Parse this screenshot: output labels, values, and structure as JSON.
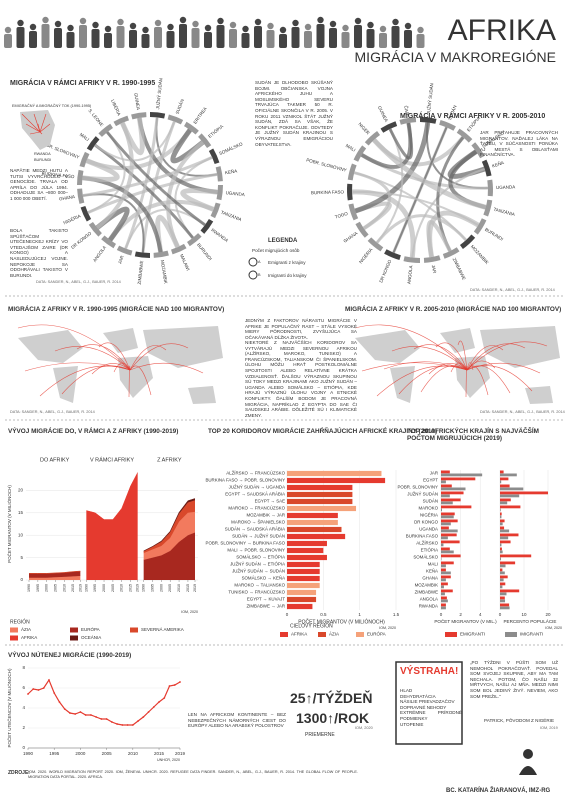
{
  "header": {
    "title": "AFRIKA",
    "subtitle": "MIGRÁCIA V MAKROREGIÓNE"
  },
  "chords": [
    {
      "title": "MIGRÁCIA V RÁMCI AFRIKY V R. 1990-1995",
      "labels": [
        "JUŽNÝ SUDÁN",
        "SUDÁN",
        "ERITREA",
        "ETIÓPIA",
        "SOMÁLSKO",
        "KEŇA",
        "UGANDA",
        "TANZÁNIA",
        "RWANDA",
        "BURUNDI",
        "MALAWI",
        "MOZAMBIK",
        "ZIMBABWE",
        "JAR",
        "ANGOLA",
        "DR KONGO",
        "NIGÉRIA",
        "GHANA",
        "BURKINA FASO",
        "POBR. SLONOVINY",
        "MALI",
        "S. LEONE",
        "LIBÉRIA",
        "GUINEA"
      ],
      "source": "DATA: SANDER, N., ABEL, G.J., BAUER, R. 2014"
    },
    {
      "title": "MIGRÁCIA V RÁMCI AFRIKY V R. 2005-2010",
      "labels": [
        "JUŽNÝ SUDÁN",
        "SUDÁN",
        "ETIÓPIA",
        "SOMÁLSKO",
        "KEŇA",
        "UGANDA",
        "TANZÁNIA",
        "BURUNDI",
        "MOZAMBIK",
        "ZIMBABWE",
        "JAR",
        "ANGOLA",
        "DR KONGO",
        "NIGÉRIA",
        "GHANA",
        "TOGO",
        "BURKINA FASO",
        "POBR. SLONOVINY",
        "MALI",
        "NIGER",
        "GUINEA",
        "ČAD"
      ],
      "source": "DATA: SANDER, N., ABEL, G.J., BAUER, R. 2014"
    }
  ],
  "chord_notes": {
    "inset_title": "EMIGRAČNÝ A IMIGRAČNÝ TOK (1990-1995)",
    "inset_labels": [
      "RWANDA",
      "BURUNDI"
    ],
    "rwanda": "NAPÄTIE MEDZI HUTU A TUTSI VYVRCHOLILO V GENOCÍDE. TRVALA OD APRÍLA DO JÚLA 1994. ODHADUJE SA ~800 000–1 000 000 OBETÍ.",
    "zaire": "BOLA TAKISTO SPÚŠŤAČOM UTEČENECKEJ KRÍZY VO VTEDAJŠOM ZAIRE (DR KONGO) A NASLEDUJÚCEJ VOJNE. NEPOKOJE SA ODOHRÁVALI TAKISTO V BURUNDI.",
    "sudan": "SUDÁN JE DLHODOBO SKÚŠANÝ BOJMI. OBČIANSKA VOJNA AFRICKÉHO JUHU A MOSLIMSKÉHO SEVERU TRVAJÚCA TAKMER 50 R. OFICIÁLNE SKONČILA V R. 2005. V ROKU 2011 VZNIKOL ŠTÁT JUŽNÝ SUDÁN, ZDÁ SA VŠAK, ŽE KONFLIKT POKRAČUJE. ODVTEDY JE JUŽNÝ SUDÁN KRAJINOU S VÝRAZNOU EMIGRÁCIOU OBYVATEĽSTVA.",
    "jar": "JAR PRIŤAHUJE PRACOVNÝCH MIGRANTOV. NAĎALEJ LÁKA NA ŤAŽBU, V SÚČASNOSTI PONÚKA AJ MESTÁ S OBLASŤAMI FINANČNÍCTVA."
  },
  "legend": {
    "title": "LEGENDA",
    "subtitle": "Počet migrujúcich osôb",
    "a": "A",
    "b": "B",
    "a_text": "Emigranti z krajiny",
    "b_text": "Imigranti do krajiny"
  },
  "maps": [
    {
      "title": "MIGRÁCIA Z AFRIKY V R. 1990-1995 (MIGRÁCIE NAD 100 MIGRANTOV)",
      "source": "DATA: SANDER, N., ABEL, G.J., BAUER, R. 2014"
    },
    {
      "title": "MIGRÁCIA Z AFRIKY V R. 2005-2010 (MIGRÁCIE NAD 100 MIGRANTOV)",
      "source": "DATA: SANDER, N., ABEL, G.J., BAUER, R. 2014"
    }
  ],
  "middle_text": {
    "p1": "JEDNÝM Z FAKTOROV NÁRASTU MIGRÁCIE V AFRIKE JE POPULAČNÝ RAST – STÁLE VYSOKÉ MIERY PÔRODNOSTI, ZVYŠUJÚCA SA OČAKÁVANÁ DĹŽKA ŽIVOTA.",
    "p2": "NIEKTORÉ Z NAJVÄČŠÍCH KORIDOROV SA VYTVÁRAJÚ MEDZI SEVERNOU AFRIKOU (ALŽÍRSKO, MAROKO, TUNISKO) A FRANCÚZSKOM, TALIANSKOM ČI ŠPANIELSKOM. ÚLOHU MÔŽU HRAŤ POSTKOLONIÁLNE SPOJITOSTI ALEBO RELATÍVNE KRÁTKA VZDIALENOSŤ. ĎALŠOU VÝRAZNOU SKUPINOU SÚ TOKY MEDZI KRAJINAMI AKO JUŽNÝ SUDÁN – UGANDA ALEBO SOMÁLSKO – ETIÓPIA, KDE HRAJÚ VÝRAZNÚ ÚLOHU VOJNY A ETNICKÉ KONFLIKTY. ĎALŠÍM BODOM JE PRACOVNÁ MIGRÁCIA, NAPRÍKLAD Z EGYPTA DO SAE ČI SAUDSKEJ ARÁBIE. DÔLEŽITÉ SÚ I KLIMATICKÉ ZMENY."
  },
  "chart_data": [
    {
      "type": "area",
      "title": "VÝVOJ MIGRÁCIE DO, V RÁMCI A Z AFRIKY (1990-2019)",
      "y_label": "POČET MIGRANTOV (V MILIÓNOCH)",
      "x": [
        1990,
        1995,
        2000,
        2005,
        2010,
        2015,
        2019
      ],
      "xticks": [
        1990,
        1995,
        2000,
        2005,
        2010,
        2015,
        2019
      ],
      "ylim": [
        0,
        25
      ],
      "yticks": [
        0,
        5,
        10,
        15,
        20
      ],
      "legend_title": "REGIÓN",
      "source": "IOM, 2020",
      "panels": [
        {
          "title": "DO AFRIKY",
          "series": [
            {
              "name": "ÁZIA",
              "color": "#f27a5e",
              "values": [
                0.5,
                0.5,
                0.5,
                0.6,
                0.7,
                0.8,
                0.9
              ]
            },
            {
              "name": "EURÓPA",
              "color": "#a8281f",
              "values": [
                0.9,
                0.9,
                0.9,
                0.9,
                0.9,
                1.0,
                1.0
              ]
            },
            {
              "name": "SEVERNÁ AMERIKA",
              "color": "#d9482b",
              "values": [
                0.1,
                0.1,
                0.1,
                0.1,
                0.1,
                0.1,
                0.1
              ]
            }
          ]
        },
        {
          "title": "V RÁMCI AFRIKY",
          "series": [
            {
              "name": "AFRIKA",
              "color": "#e53a2f",
              "values": [
                15.5,
                15,
                13.5,
                13.5,
                16,
                21,
                24
              ]
            }
          ]
        },
        {
          "title": "Z AFRIKY",
          "series": [
            {
              "name": "EURÓPA",
              "color": "#a8281f",
              "values": [
                4.5,
                5,
                5.5,
                6.5,
                8.5,
                10,
                10.6
              ]
            },
            {
              "name": "ÁZIA",
              "color": "#f27a5e",
              "values": [
                1.5,
                1.8,
                2.1,
                2.9,
                4.5,
                5,
                4.6
              ]
            },
            {
              "name": "SEVERNÁ AMERIKA",
              "color": "#d9482b",
              "values": [
                0.4,
                0.6,
                0.9,
                1.3,
                1.8,
                2.3,
                2.6
              ]
            },
            {
              "name": "OCEÁNIA",
              "color": "#6b1a14",
              "values": [
                0.1,
                0.1,
                0.2,
                0.2,
                0.3,
                0.4,
                0.4
              ]
            }
          ]
        }
      ]
    },
    {
      "type": "bar",
      "orientation": "horizontal",
      "title": "TOP 20 KORIDOROV MIGRÁCIE ZAHŔŇAJÚCICH AFRICKÉ KRAJINY (2019)",
      "x_label": "POČET MIGRANTOV (V MILIÓNOCH)",
      "categories": [
        "ALŽÍRSKO → FRANCÚZSKO",
        "BURKINA FASO → POBR. SLONOVINY",
        "JUŽNÝ SUDÁN → UGANDA",
        "EGYPT → SAUDSKÁ ARÁBIA",
        "EGYPT → SAE",
        "MAROKO → FRANCÚZSKO",
        "MOZAMBIK → JAR",
        "MAROKO → ŠPANIELSKO",
        "SUDÁN → SAUDSKÁ ARÁBIA",
        "SUDÁN → JUŽNÝ SUDÁN",
        "POBR. SLONOVINY → BURKINA FASO",
        "MALI → POBR. SLONOVINY",
        "SOMÁLSKO → ETIÓPIA",
        "JUŽNÝ SUDÁN → ETIÓPIA",
        "JUŽNÝ SUDÁN → SUDÁN",
        "SOMÁLSKO → KEŇA",
        "MAROKO → TALIANSKO",
        "TUNISKO → FRANCÚZSKO",
        "EGYPT → KUVAJT",
        "ZIMBABWE → JAR"
      ],
      "values": [
        1.3,
        1.35,
        0.9,
        0.9,
        0.9,
        0.95,
        0.7,
        0.7,
        0.75,
        0.8,
        0.55,
        0.5,
        0.55,
        0.45,
        0.45,
        0.45,
        0.45,
        0.4,
        0.4,
        0.35
      ],
      "colors": [
        "#f5a27a",
        "#e53a2f",
        "#e53a2f",
        "#d9482b",
        "#d9482b",
        "#f5a27a",
        "#e53a2f",
        "#f5a27a",
        "#d9482b",
        "#e53a2f",
        "#e53a2f",
        "#e53a2f",
        "#e53a2f",
        "#e53a2f",
        "#e53a2f",
        "#e53a2f",
        "#f5a27a",
        "#f5a27a",
        "#d9482b",
        "#e53a2f"
      ],
      "xlim": [
        0,
        1.5
      ],
      "xticks": [
        0,
        0.5,
        1,
        1.5
      ],
      "legend_title": "CIEĽOVÝ REGIÓN",
      "legend": [
        {
          "name": "AFRIKA",
          "color": "#e53a2f"
        },
        {
          "name": "ÁZIA",
          "color": "#d9482b"
        },
        {
          "name": "EURÓPA",
          "color": "#f5a27a"
        }
      ],
      "source": "IOM, 2020"
    },
    {
      "type": "bar",
      "orientation": "horizontal",
      "title": "TOP 20 AFRICKÝCH KRAJÍN S NAJVÄČŠÍM POČTOM MIGRUJÚCICH (2019)",
      "categories": [
        "JAR",
        "EGYPT",
        "POBR. SLONOVINY",
        "JUŽNÝ SUDÁN",
        "SUDÁN",
        "MAROKO",
        "NIGÉRIA",
        "DR KONGO",
        "UGANDA",
        "BURKINA FASO",
        "ALŽÍRSKO",
        "ETIÓPIA",
        "SOMÁLSKO",
        "MALI",
        "KEŇA",
        "GHANA",
        "MOZAMBIK",
        "ZIMBABWE",
        "ANGOLA",
        "RWANDA"
      ],
      "source": "IOM, 2020",
      "panels": [
        {
          "x_label": "POČET MIGRANTOV (V MIL.)",
          "xlim": [
            0,
            5
          ],
          "xticks": [
            0,
            2,
            4
          ],
          "series": [
            {
              "name": "EMIGRANTI",
              "color": "#e53a2f",
              "values": [
                0.9,
                3.5,
                1.1,
                2.3,
                2.0,
                3.1,
                1.4,
                1.7,
                0.8,
                1.6,
                1.9,
                0.9,
                2.0,
                1.3,
                0.5,
                1.0,
                0.7,
                1.2,
                0.6,
                0.5
              ]
            },
            {
              "name": "IMIGRANTI",
              "color": "#8c8c8c",
              "values": [
                4.2,
                0.5,
                2.5,
                0.9,
                1.2,
                0.1,
                1.3,
                1.0,
                1.7,
                0.7,
                0.25,
                1.3,
                0.05,
                0.5,
                1.0,
                0.5,
                0.3,
                0.4,
                0.7,
                0.5
              ]
            }
          ]
        },
        {
          "x_label": "PERCENTO POPULÁCIE",
          "xlim": [
            0,
            25
          ],
          "xticks": [
            0,
            10,
            20
          ],
          "series": [
            {
              "color": "#e53a2f",
              "values": [
                1.5,
                3.5,
                4,
                20,
                4.5,
                8.5,
                0.7,
                1.9,
                1.7,
                7.7,
                4.4,
                0.8,
                13,
                6.3,
                1,
                3.2,
                2.2,
                8,
                2,
                3.8
              ]
            },
            {
              "color": "#8c8c8c",
              "values": [
                7,
                0.5,
                9.7,
                8,
                3,
                0.3,
                0.6,
                1.1,
                3.8,
                3.4,
                0.6,
                1.1,
                0.4,
                2.3,
                2,
                1.5,
                1,
                2.7,
                2.1,
                4
              ]
            }
          ]
        }
      ]
    },
    {
      "type": "line",
      "title": "VÝVOJ NÚTENEJ MIGRÁCIE (1990-2019)",
      "y_label": "POČET UTEČENCOV (V MILIÓNOCH)",
      "color": "#e53a2f",
      "x": [
        1990,
        1991,
        1992,
        1993,
        1994,
        1995,
        1996,
        1997,
        1998,
        1999,
        2000,
        2001,
        2002,
        2003,
        2004,
        2005,
        2006,
        2007,
        2008,
        2009,
        2010,
        2011,
        2012,
        2013,
        2014,
        2015,
        2016,
        2017,
        2018,
        2019
      ],
      "values": [
        5.4,
        5.9,
        5.8,
        6,
        6.8,
        5.5,
        4.6,
        3.9,
        3.5,
        3.4,
        3.6,
        3.3,
        3.3,
        3.1,
        2.9,
        2.9,
        2.6,
        2.4,
        2.3,
        2.3,
        2.3,
        2.7,
        3.1,
        3.6,
        4.1,
        4.6,
        5,
        6.2,
        6.3,
        6.6
      ],
      "xlim": [
        1990,
        2019
      ],
      "xticks": [
        1990,
        1995,
        2000,
        2005,
        2010,
        2015,
        2019
      ],
      "ylim": [
        0,
        8
      ],
      "yticks": [
        0,
        2,
        4,
        6,
        8
      ],
      "source": "UNHCR, 2020"
    }
  ],
  "refugees": {
    "week": "25↑/TÝŽDEŇ",
    "year": "1300↑/ROK",
    "avg": "PRIEMERNE",
    "source": "IOM, 2020",
    "note": "LEN NA AFRICKOM KONTINENTE – BEZ NEBEZPEČNÝCH NÁMORNÝCH CIEST DO EURÓPY ALEBO NA ARABSKÝ POLOSTROV",
    "warning": "VÝSTRAHA!",
    "dangers": [
      "HLAD",
      "DEHYDRATÁCIA",
      "NÁSILIE PRIEVADZAČOV",
      "DOPRAVNÉ NEHODY",
      "EXTRÉMNE PRÍRODNÉ PODMIENKY",
      "UTOPENIE"
    ],
    "quote": "„PO TÝŽDNI V PÚŠTI SOM UŽ NEMOHOL POKRAČOVAŤ. POVEDAL SOM SVOJEJ SKUPINE, ABY MA TAM NECHALA. POTOM, ČO NAŠLI 32 MŔTVYCH, NAŠLI AJ MŇA. MEDZI NIMI SOM BOL JEDINÝ ŽIVÝ. NEVIEM, AKO SOM PREŽIL.“",
    "quote_author": "PATRICK, PÔVODOM Z NIGÉRIE",
    "quote_source": "IOM, 2019"
  },
  "footer": {
    "sources_title": "ZDROJE:",
    "sources": "IOM. 2020. WORLD MIGRATION REPORT 2020. IOM, ŽENEVA. UNHCR. 2020. REFUGEE DATA FINDER. SANDER, N., ABEL, G.J., BAUER, R. 2014. THE GLOBAL FLOW OF PEOPLE. MIGRATION DATA PORTAL. 2020. AFRICA.",
    "author": "BC. KATARÍNA ŽIARANOVÁ, IMZ-RG"
  }
}
